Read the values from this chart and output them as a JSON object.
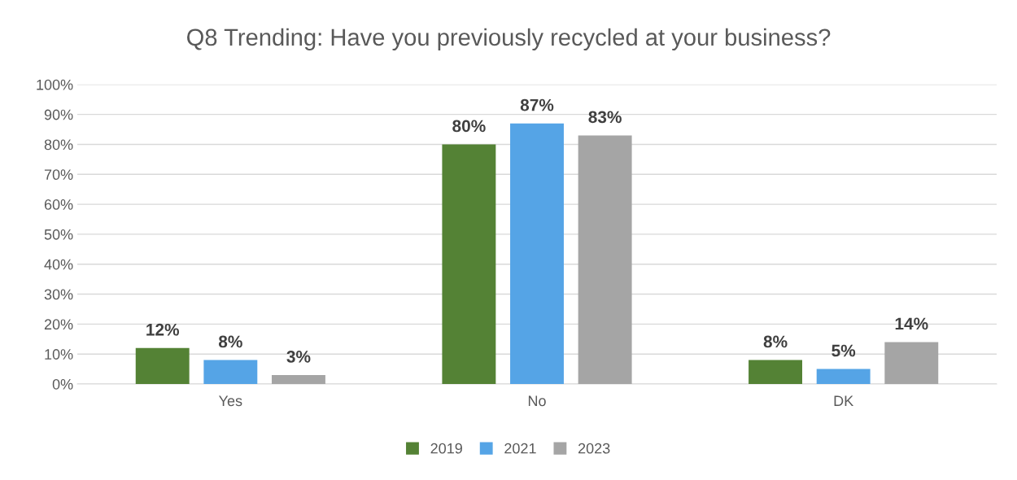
{
  "chart_data": {
    "type": "bar",
    "title": "Q8 Trending: Have you previously recycled at your business?",
    "categories": [
      "Yes",
      "No",
      "DK"
    ],
    "series": [
      {
        "name": "2019",
        "color": "#548235",
        "values": [
          12,
          80,
          8
        ],
        "value_labels": [
          "12%",
          "80%",
          "8%"
        ]
      },
      {
        "name": "2021",
        "color": "#55a4e6",
        "values": [
          8,
          87,
          5
        ],
        "value_labels": [
          "8%",
          "87%",
          "5%"
        ]
      },
      {
        "name": "2023",
        "color": "#a5a5a5",
        "values": [
          3,
          83,
          14
        ],
        "value_labels": [
          "3%",
          "83%",
          "14%"
        ]
      }
    ],
    "ylim": [
      0,
      100
    ],
    "yticks": [
      {
        "value": 0,
        "label": "0%"
      },
      {
        "value": 10,
        "label": "10%"
      },
      {
        "value": 20,
        "label": "20%"
      },
      {
        "value": 30,
        "label": "30%"
      },
      {
        "value": 40,
        "label": "40%"
      },
      {
        "value": 50,
        "label": "50%"
      },
      {
        "value": 60,
        "label": "60%"
      },
      {
        "value": 70,
        "label": "70%"
      },
      {
        "value": 80,
        "label": "80%"
      },
      {
        "value": 90,
        "label": "90%"
      },
      {
        "value": 100,
        "label": "100%"
      }
    ],
    "grid": "y",
    "legend": "bottom"
  }
}
